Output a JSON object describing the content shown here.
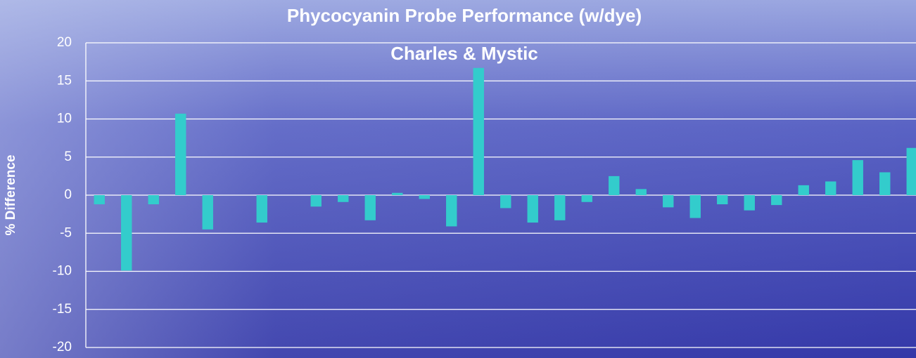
{
  "chart_data": {
    "type": "bar",
    "title": "Phycocyanin Probe Performance (w/dye)",
    "subtitle": "Charles & Mystic",
    "y_label": "% Difference",
    "categories": [
      null,
      null,
      null,
      null,
      null,
      null,
      null,
      null,
      null,
      null,
      null,
      null,
      null,
      null,
      null,
      null,
      null,
      null,
      null,
      null,
      null,
      null,
      null,
      null,
      null,
      null,
      null,
      null,
      null,
      null,
      null
    ],
    "values": [
      -1.2,
      -9.9,
      -1.2,
      10.7,
      -4.5,
      null,
      -3.6,
      null,
      -1.5,
      -0.9,
      -3.3,
      0.3,
      -0.5,
      -4.1,
      16.7,
      -1.7,
      -3.6,
      -3.3,
      -0.9,
      2.5,
      0.8,
      -1.6,
      -3.0,
      -1.2,
      -2.0,
      -1.3,
      1.3,
      1.8,
      4.6,
      3.0,
      6.2
    ],
    "color": "#33cccc",
    "ylim": [
      -20,
      20
    ],
    "yticks": [
      -20,
      -15,
      -10,
      -5,
      0,
      5,
      10,
      15,
      20
    ],
    "grid": true
  }
}
